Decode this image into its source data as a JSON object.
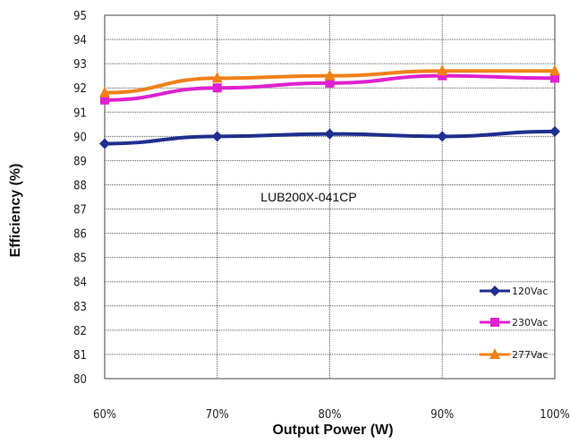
{
  "chart_data": {
    "type": "line",
    "title": "",
    "annotation": "LUB200X-041CP",
    "xlabel": "Output Power (W)",
    "ylabel": "Efficiency (%)",
    "categories": [
      "60%",
      "70%",
      "80%",
      "90%",
      "100%"
    ],
    "ylim": [
      80,
      95
    ],
    "yticks": [
      "80",
      "81",
      "82",
      "83",
      "84",
      "85",
      "86",
      "87",
      "88",
      "89",
      "90",
      "91",
      "92",
      "93",
      "94",
      "95"
    ],
    "grid": true,
    "legend_position": "bottom-right",
    "series": [
      {
        "name": "120Vac",
        "color": "#1f2f8f",
        "marker": "diamond",
        "values": [
          89.7,
          90.0,
          90.1,
          90.0,
          90.2
        ]
      },
      {
        "name": "230Vac",
        "color": "#e020d0",
        "marker": "square",
        "values": [
          91.5,
          92.0,
          92.2,
          92.5,
          92.4
        ]
      },
      {
        "name": "277Vac",
        "color": "#f08018",
        "marker": "triangle",
        "values": [
          91.8,
          92.4,
          92.5,
          92.7,
          92.7
        ]
      }
    ]
  }
}
